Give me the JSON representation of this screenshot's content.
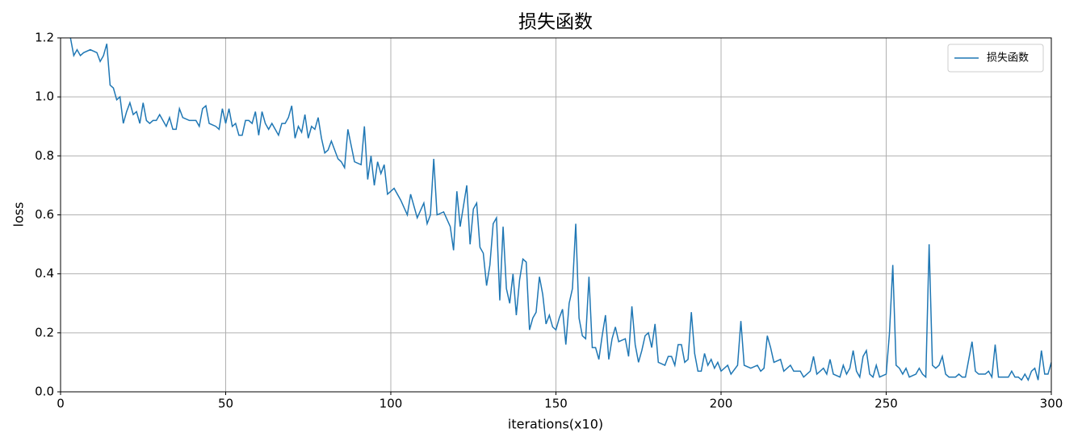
{
  "chart_data": {
    "type": "line",
    "title": "损失函数",
    "x_label": "iterations(x10)",
    "y_label": "loss",
    "x": [
      3,
      4,
      5,
      6,
      7,
      9,
      11,
      12,
      13,
      14,
      15,
      16,
      17,
      18,
      19,
      20,
      21,
      22,
      23,
      24,
      25,
      26,
      27,
      28,
      29,
      30,
      32,
      33,
      34,
      35,
      36,
      37,
      39,
      41,
      42,
      43,
      44,
      45,
      47,
      48,
      49,
      50,
      51,
      52,
      53,
      54,
      55,
      56,
      57,
      58,
      59,
      60,
      61,
      62,
      63,
      64,
      65,
      66,
      67,
      68,
      69,
      70,
      71,
      72,
      73,
      74,
      75,
      76,
      77,
      78,
      79,
      80,
      81,
      82,
      83,
      84,
      85,
      86,
      87,
      89,
      91,
      92,
      93,
      94,
      95,
      96,
      97,
      98,
      99,
      101,
      103,
      105,
      106,
      108,
      110,
      111,
      112,
      113,
      114,
      116,
      118,
      119,
      120,
      121,
      123,
      124,
      125,
      126,
      127,
      128,
      129,
      130,
      131,
      132,
      133,
      134,
      135,
      136,
      137,
      138,
      139,
      140,
      141,
      142,
      143,
      144,
      145,
      146,
      147,
      148,
      149,
      150,
      151,
      152,
      153,
      154,
      155,
      156,
      157,
      158,
      159,
      160,
      161,
      162,
      163,
      164,
      165,
      166,
      167,
      168,
      169,
      171,
      172,
      173,
      174,
      175,
      176,
      177,
      178,
      179,
      180,
      181,
      183,
      184,
      185,
      186,
      187,
      188,
      189,
      190,
      191,
      192,
      193,
      194,
      195,
      196,
      197,
      198,
      199,
      200,
      202,
      203,
      205,
      206,
      207,
      209,
      211,
      212,
      213,
      214,
      215,
      216,
      218,
      219,
      221,
      222,
      224,
      225,
      227,
      228,
      229,
      231,
      232,
      233,
      234,
      236,
      237,
      238,
      239,
      240,
      241,
      242,
      243,
      244,
      245,
      246,
      247,
      248,
      250,
      251,
      252,
      253,
      254,
      255,
      256,
      257,
      259,
      260,
      261,
      262,
      263,
      264,
      265,
      266,
      267,
      268,
      269,
      271,
      272,
      273,
      274,
      275,
      276,
      277,
      278,
      280,
      281,
      282,
      283,
      284,
      286,
      287,
      288,
      289,
      290,
      291,
      292,
      293,
      294,
      295,
      296,
      297,
      298,
      299,
      300
    ],
    "series": [
      {
        "name": "损失函数",
        "color": "#1f77b4",
        "values": [
          1.2,
          1.14,
          1.16,
          1.14,
          1.15,
          1.16,
          1.15,
          1.12,
          1.14,
          1.18,
          1.04,
          1.03,
          0.99,
          1.0,
          0.91,
          0.95,
          0.98,
          0.94,
          0.95,
          0.91,
          0.98,
          0.92,
          0.91,
          0.92,
          0.92,
          0.94,
          0.9,
          0.93,
          0.89,
          0.89,
          0.96,
          0.93,
          0.92,
          0.92,
          0.9,
          0.96,
          0.97,
          0.91,
          0.9,
          0.89,
          0.96,
          0.91,
          0.96,
          0.9,
          0.91,
          0.87,
          0.87,
          0.92,
          0.92,
          0.91,
          0.95,
          0.87,
          0.95,
          0.91,
          0.89,
          0.91,
          0.89,
          0.87,
          0.91,
          0.91,
          0.93,
          0.97,
          0.86,
          0.9,
          0.88,
          0.94,
          0.86,
          0.9,
          0.89,
          0.93,
          0.86,
          0.81,
          0.82,
          0.85,
          0.82,
          0.79,
          0.78,
          0.76,
          0.89,
          0.78,
          0.77,
          0.9,
          0.72,
          0.8,
          0.7,
          0.78,
          0.74,
          0.77,
          0.67,
          0.69,
          0.65,
          0.6,
          0.67,
          0.59,
          0.64,
          0.57,
          0.6,
          0.79,
          0.6,
          0.61,
          0.56,
          0.48,
          0.68,
          0.56,
          0.7,
          0.5,
          0.62,
          0.64,
          0.49,
          0.47,
          0.36,
          0.43,
          0.57,
          0.59,
          0.31,
          0.56,
          0.35,
          0.3,
          0.4,
          0.26,
          0.38,
          0.45,
          0.44,
          0.21,
          0.25,
          0.27,
          0.39,
          0.33,
          0.23,
          0.26,
          0.22,
          0.21,
          0.25,
          0.28,
          0.16,
          0.3,
          0.35,
          0.57,
          0.25,
          0.19,
          0.18,
          0.39,
          0.15,
          0.15,
          0.11,
          0.19,
          0.26,
          0.11,
          0.18,
          0.22,
          0.17,
          0.18,
          0.12,
          0.29,
          0.16,
          0.1,
          0.14,
          0.19,
          0.2,
          0.15,
          0.23,
          0.1,
          0.09,
          0.12,
          0.12,
          0.09,
          0.16,
          0.16,
          0.1,
          0.11,
          0.27,
          0.13,
          0.07,
          0.07,
          0.13,
          0.09,
          0.11,
          0.08,
          0.1,
          0.07,
          0.09,
          0.06,
          0.09,
          0.24,
          0.09,
          0.08,
          0.09,
          0.07,
          0.08,
          0.19,
          0.15,
          0.1,
          0.11,
          0.07,
          0.09,
          0.07,
          0.07,
          0.05,
          0.07,
          0.12,
          0.06,
          0.08,
          0.06,
          0.11,
          0.06,
          0.05,
          0.09,
          0.06,
          0.08,
          0.14,
          0.07,
          0.05,
          0.12,
          0.14,
          0.06,
          0.05,
          0.09,
          0.05,
          0.06,
          0.2,
          0.43,
          0.09,
          0.08,
          0.06,
          0.08,
          0.05,
          0.06,
          0.08,
          0.06,
          0.05,
          0.5,
          0.09,
          0.08,
          0.09,
          0.12,
          0.06,
          0.05,
          0.05,
          0.06,
          0.05,
          0.05,
          0.11,
          0.17,
          0.07,
          0.06,
          0.06,
          0.07,
          0.05,
          0.16,
          0.05,
          0.05,
          0.05,
          0.07,
          0.05,
          0.05,
          0.04,
          0.06,
          0.04,
          0.07,
          0.08,
          0.04,
          0.14,
          0.06,
          0.06,
          0.1
        ]
      }
    ],
    "xlim": [
      0,
      300
    ],
    "xticks": [
      0,
      50,
      100,
      150,
      200,
      250,
      300
    ],
    "ylim": [
      0,
      1.2
    ],
    "yticks": [
      {
        "value": 0,
        "label": "0.0"
      },
      0.2,
      0.4,
      0.6,
      0.8,
      {
        "value": 1,
        "label": "1.0"
      },
      1.2
    ],
    "grid": true,
    "legend": "upper right"
  }
}
